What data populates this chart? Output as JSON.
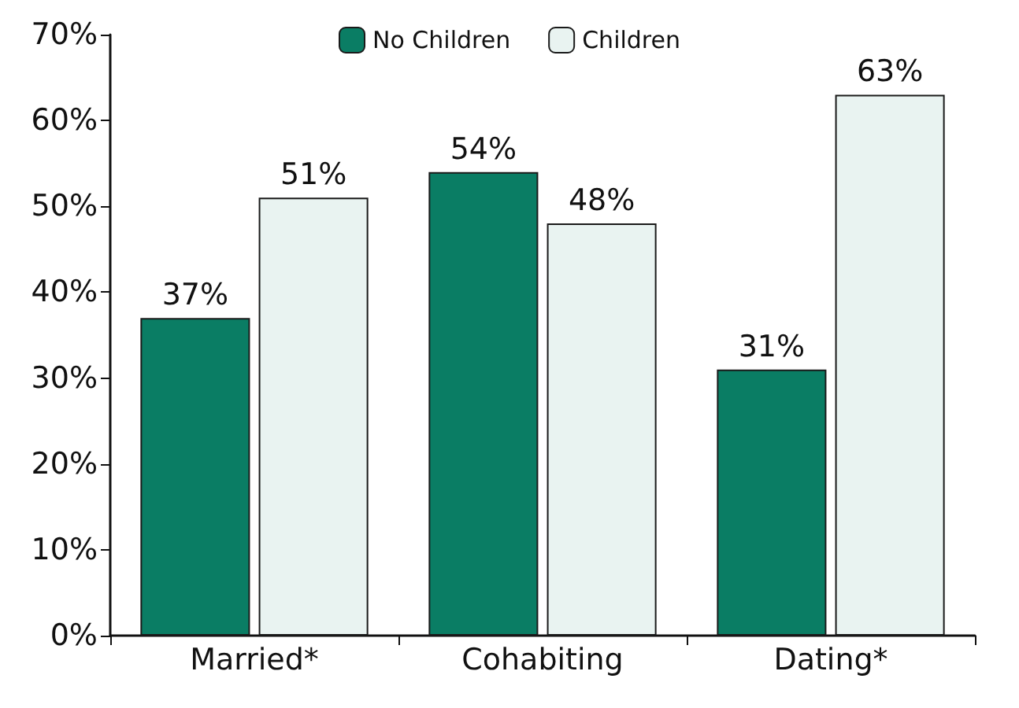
{
  "chart_data": {
    "type": "bar",
    "categories": [
      "Married*",
      "Cohabiting",
      "Dating*"
    ],
    "series": [
      {
        "name": "No Children",
        "color": "#0a7d64",
        "values": [
          37,
          54,
          31
        ],
        "value_labels": [
          "37%",
          "54%",
          "31%"
        ]
      },
      {
        "name": "Children",
        "color": "#e9f3f1",
        "values": [
          51,
          48,
          63
        ],
        "value_labels": [
          "51%",
          "48%",
          "63%"
        ]
      }
    ],
    "ylim": [
      0,
      70
    ],
    "yticks": [
      {
        "value": 0,
        "label": "0%"
      },
      {
        "value": 10,
        "label": "10%"
      },
      {
        "value": 20,
        "label": "20%"
      },
      {
        "value": 30,
        "label": "30%"
      },
      {
        "value": 40,
        "label": "40%"
      },
      {
        "value": 50,
        "label": "50%"
      },
      {
        "value": 60,
        "label": "60%"
      },
      {
        "value": 70,
        "label": "70%"
      }
    ],
    "grid": false,
    "legend": "top"
  }
}
